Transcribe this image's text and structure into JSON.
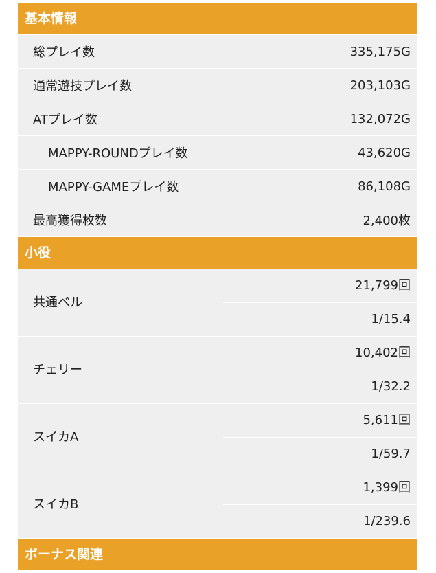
{
  "sections": [
    {
      "title": "基本情報",
      "rows": [
        {
          "label": "総プレイ数",
          "value": "335,175G"
        },
        {
          "label": "通常遊技プレイ数",
          "value": "203,103G"
        },
        {
          "label": "ATプレイ数",
          "value": "132,072G",
          "children": [
            {
              "label": "MAPPY-ROUNDプレイ数",
              "value": "43,620G"
            },
            {
              "label": "MAPPY-GAMEプレイ数",
              "value": "86,108G"
            }
          ]
        },
        {
          "label": "最高獲得枚数",
          "value": "2,400枚"
        }
      ]
    },
    {
      "title": "小役",
      "rows": [
        {
          "label": "共通ベル",
          "values": [
            "21,799回",
            "1/15.4"
          ]
        },
        {
          "label": "チェリー",
          "values": [
            "10,402回",
            "1/32.2"
          ]
        },
        {
          "label": "スイカA",
          "values": [
            "5,611回",
            "1/59.7"
          ]
        },
        {
          "label": "スイカB",
          "values": [
            "1,399回",
            "1/239.6"
          ]
        }
      ]
    },
    {
      "title": "ボーナス関連"
    }
  ]
}
